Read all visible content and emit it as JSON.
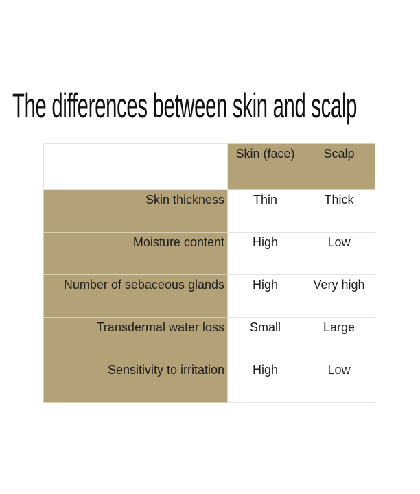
{
  "title": "The differences between skin and scalp",
  "table": {
    "headers": [
      "",
      "Skin (face)",
      "Scalp"
    ],
    "rows": [
      {
        "label": "Skin thickness",
        "skin": "Thin",
        "scalp": "Thick"
      },
      {
        "label": "Moisture content",
        "skin": "High",
        "scalp": "Low"
      },
      {
        "label": "Number of sebaceous glands",
        "skin": "High",
        "scalp": "Very high"
      },
      {
        "label": "Transdermal water loss",
        "skin": "Small",
        "scalp": "Large"
      },
      {
        "label": "Sensitivity to irritation",
        "skin": "High",
        "scalp": "Low"
      }
    ]
  },
  "colors": {
    "accent": "#b3a177",
    "border": "#e4e4e4"
  }
}
